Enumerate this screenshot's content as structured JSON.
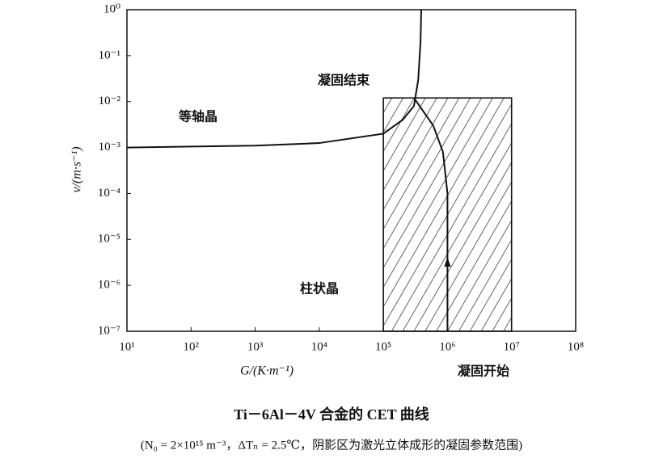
{
  "chart_data": {
    "type": "line",
    "xlog": true,
    "ylog": true,
    "xlabel": "G/(K·m⁻¹)",
    "ylabel": "v/(m·s⁻¹)",
    "title": "Ti－6Al－4V 合金的 CET 曲线",
    "subtitle": "(N₀ = 2×10¹⁵ m⁻³，ΔTₙ = 2.5℃，阴影区为激光立体成形的凝固参数范围)",
    "xlim": [
      10,
      100000000
    ],
    "ylim": [
      1e-07,
      1
    ],
    "xticks": [
      {
        "value": 10,
        "label": "10¹"
      },
      {
        "value": 100,
        "label": "10²"
      },
      {
        "value": 1000,
        "label": "10³"
      },
      {
        "value": 10000,
        "label": "10⁴"
      },
      {
        "value": 100000,
        "label": "10⁵"
      },
      {
        "value": 1000000,
        "label": "10⁶"
      },
      {
        "value": 10000000,
        "label": "10⁷"
      },
      {
        "value": 100000000,
        "label": "10⁸"
      }
    ],
    "yticks": [
      {
        "value": 1e-07,
        "label": "10⁻⁷"
      },
      {
        "value": 1e-06,
        "label": "10⁻⁶"
      },
      {
        "value": 1e-05,
        "label": "10⁻⁵"
      },
      {
        "value": 0.0001,
        "label": "10⁻⁴"
      },
      {
        "value": 0.001,
        "label": "10⁻³"
      },
      {
        "value": 0.01,
        "label": "10⁻²"
      },
      {
        "value": 0.1,
        "label": "10⁻¹"
      },
      {
        "value": 1,
        "label": "10⁰"
      }
    ],
    "series": [
      {
        "color": "#111111",
        "x": [
          10,
          100,
          1000,
          10000,
          100000,
          200000,
          300000,
          350000,
          380000,
          390000
        ],
        "values": [
          0.001,
          0.00105,
          0.0011,
          0.00125,
          0.002,
          0.004,
          0.008,
          0.03,
          0.2,
          1
        ]
      },
      {
        "color": "#111111",
        "x": [
          300000,
          600000,
          850000,
          1000000,
          1000000
        ],
        "values": [
          0.012,
          0.003,
          0.0008,
          0.0001,
          1e-07
        ]
      }
    ],
    "region": {
      "x": [
        100000,
        10000000
      ],
      "y": [
        1e-07,
        0.012
      ]
    },
    "annotations": {
      "equiaxed": "等轴晶",
      "end": "凝固结束",
      "columnar": "柱状晶",
      "start": "凝固开始"
    }
  }
}
